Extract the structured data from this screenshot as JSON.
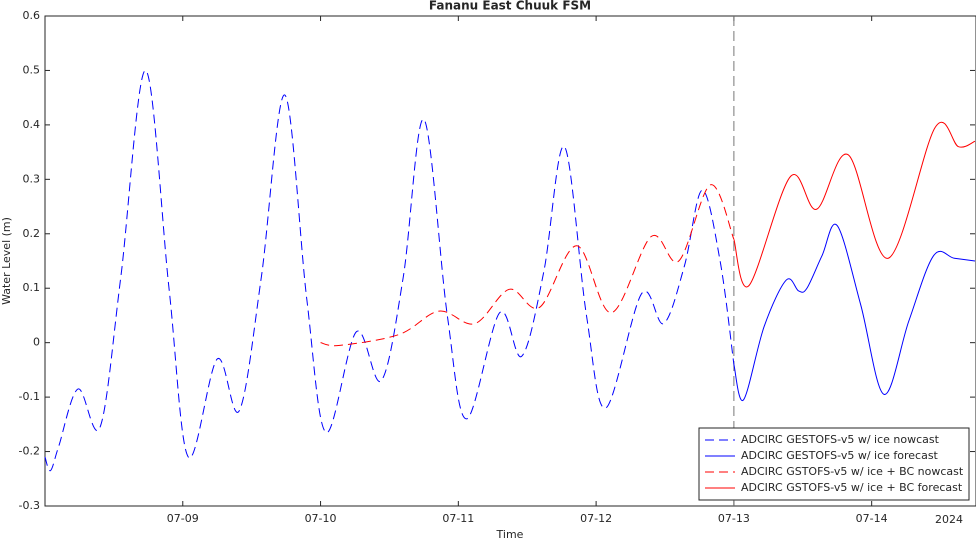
{
  "chart_data": {
    "type": "line",
    "title": "Fananu East Chuuk FSM",
    "x_label": "Time",
    "y_label": "Water Level (m)",
    "year_label": "2024",
    "xlim": [
      8,
      14.75
    ],
    "ylim": [
      -0.3,
      0.6
    ],
    "xticks": [
      {
        "value": 9,
        "label": "07-09"
      },
      {
        "value": 10,
        "label": "07-10"
      },
      {
        "value": 11,
        "label": "07-11"
      },
      {
        "value": 12,
        "label": "07-12"
      },
      {
        "value": 13,
        "label": "07-13"
      },
      {
        "value": 14,
        "label": "07-14"
      }
    ],
    "yticks": [
      -0.3,
      -0.2,
      -0.1,
      0,
      0.1,
      0.2,
      0.3,
      0.4,
      0.5,
      0.6
    ],
    "vline": 13,
    "legend": "lower right",
    "series": [
      {
        "name": "ADCIRC GESTOFS-v5 w/ ice nowcast",
        "color": "#0000ff",
        "dashed": true,
        "x": [
          8.0,
          8.04,
          8.1,
          8.24,
          8.4,
          8.55,
          8.73,
          8.9,
          9.04,
          9.25,
          9.41,
          9.57,
          9.74,
          9.9,
          10.04,
          10.26,
          10.44,
          10.6,
          10.75,
          10.92,
          11.06,
          11.3,
          11.46,
          11.62,
          11.77,
          11.93,
          12.07,
          12.33,
          12.49,
          12.64,
          12.77,
          12.9,
          13.0
        ],
        "values": [
          -0.21,
          -0.235,
          -0.19,
          -0.085,
          -0.155,
          0.12,
          0.5,
          0.1,
          -0.21,
          -0.03,
          -0.125,
          0.12,
          0.455,
          0.08,
          -0.165,
          0.02,
          -0.07,
          0.12,
          0.41,
          0.05,
          -0.14,
          0.055,
          -0.025,
          0.13,
          0.36,
          0.05,
          -0.12,
          0.09,
          0.035,
          0.14,
          0.28,
          0.15,
          -0.04
        ]
      },
      {
        "name": "ADCIRC GESTOFS-v5 w/ ice forecast",
        "color": "#0000ff",
        "dashed": false,
        "x": [
          13.0,
          13.07,
          13.22,
          13.38,
          13.47,
          13.53,
          13.64,
          13.75,
          13.92,
          14.09,
          14.27,
          14.45,
          14.6,
          14.75
        ],
        "values": [
          -0.04,
          -0.105,
          0.03,
          0.115,
          0.095,
          0.1,
          0.16,
          0.215,
          0.07,
          -0.095,
          0.04,
          0.16,
          0.155,
          0.15
        ]
      },
      {
        "name": "ADCIRC GSTOFS-v5 w/ ice + BC nowcast",
        "color": "#ff0000",
        "dashed": true,
        "x": [
          10.0,
          10.14,
          10.57,
          10.86,
          11.12,
          11.37,
          11.59,
          11.86,
          12.11,
          12.4,
          12.6,
          12.83,
          13.0
        ],
        "values": [
          0.0,
          -0.005,
          0.015,
          0.058,
          0.035,
          0.098,
          0.065,
          0.178,
          0.055,
          0.195,
          0.15,
          0.29,
          0.19
        ]
      },
      {
        "name": "ADCIRC GSTOFS-v5 w/ ice + BC forecast",
        "color": "#ff0000",
        "dashed": false,
        "x": [
          13.0,
          13.11,
          13.41,
          13.6,
          13.83,
          14.12,
          14.46,
          14.63,
          14.75
        ],
        "values": [
          0.19,
          0.105,
          0.305,
          0.245,
          0.345,
          0.155,
          0.395,
          0.36,
          0.37
        ]
      }
    ]
  }
}
